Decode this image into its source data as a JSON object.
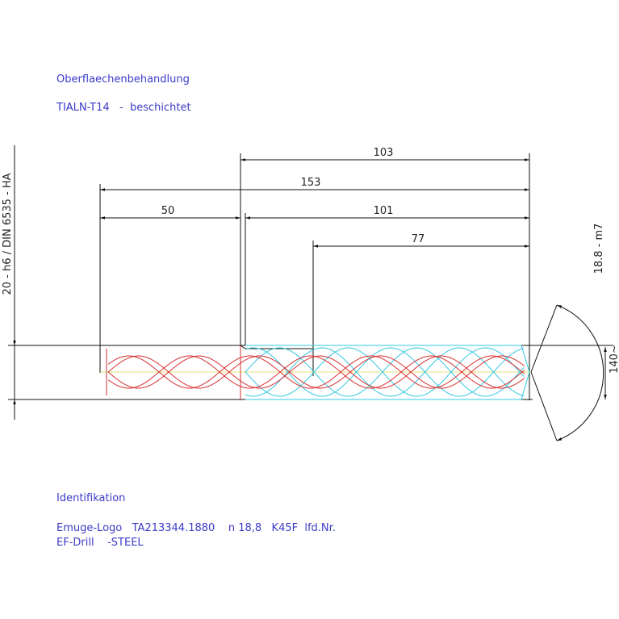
{
  "notes": {
    "surface_heading": "Oberflaechenbehandlung",
    "surface_value": "TIALN-T14   -  beschichtet",
    "id_heading": "Identifikation",
    "id_line1": "Emuge-Logo   TA213344.1880    n 18,8   K45F  lfd.Nr.",
    "id_line2": "EF-Drill    -STEEL"
  },
  "dimensions": {
    "d103": "103",
    "d153": "153",
    "d50": "50",
    "d101": "101",
    "d77": "77",
    "shank": "20 - h6 / DIN 6535 - HA",
    "body": "18.8 - m7",
    "angle": "140~"
  }
}
